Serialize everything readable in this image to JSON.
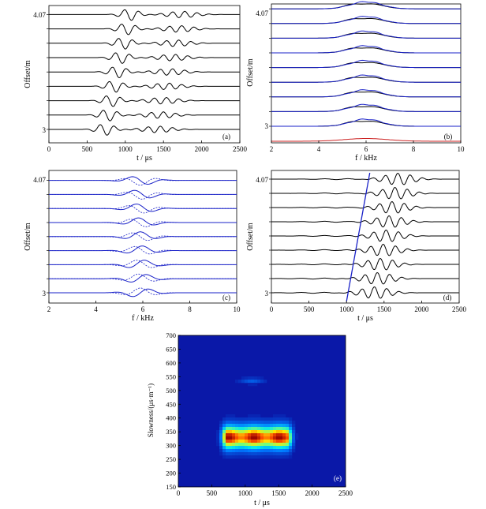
{
  "colors": {
    "trace": "#000000",
    "blue": "#1a22c8",
    "red": "#cc2222"
  },
  "chart_data": [
    {
      "panel": "(a)",
      "type": "line",
      "title": "",
      "xlabel": "t / μs",
      "ylabel": "Offset/m",
      "xlim": [
        0,
        2500
      ],
      "xticks": [
        "0",
        "500",
        "1000",
        "1500",
        "2000",
        "2500"
      ],
      "ytick_labels": [
        "4.07",
        "3"
      ],
      "offsets_m": [
        3,
        3.134,
        3.268,
        3.401,
        3.535,
        3.669,
        3.803,
        3.936,
        4.07
      ],
      "grid": false
    },
    {
      "panel": "(b)",
      "type": "line",
      "title": "",
      "xlabel": "f / kHz",
      "ylabel": "Offset/m",
      "xlim": [
        2,
        10
      ],
      "xticks": [
        "2",
        "4",
        "6",
        "8",
        "10"
      ],
      "ytick_labels": [
        "4.07",
        "3"
      ],
      "series": [
        {
          "color": "black"
        },
        {
          "color": "blue"
        },
        {
          "color": "red"
        }
      ],
      "grid": false
    },
    {
      "panel": "(c)",
      "type": "line",
      "title": "",
      "xlabel": "f / kHz",
      "ylabel": "Offset/m",
      "xlim": [
        2,
        10
      ],
      "xticks": [
        "2",
        "4",
        "6",
        "8",
        "10"
      ],
      "ytick_labels": [
        "4.07",
        "3"
      ],
      "series": [
        {
          "color": "blue",
          "style": "solid"
        },
        {
          "color": "blue",
          "style": "dashed"
        }
      ],
      "grid": false
    },
    {
      "panel": "(d)",
      "type": "line",
      "title": "",
      "xlabel": "t / μs",
      "ylabel": "Offset/m",
      "xlim": [
        0,
        2500
      ],
      "xticks": [
        "0",
        "500",
        "1000",
        "1500",
        "2000",
        "2500"
      ],
      "ytick_labels": [
        "4.07",
        "3"
      ],
      "moveout_line": {
        "x_at_3m": 1000,
        "x_at_4.07m": 1310
      },
      "grid": false
    },
    {
      "panel": "(e)",
      "type": "heatmap",
      "title": "",
      "xlabel": "t / μs",
      "ylabel": "Slowness/(μs·m⁻¹)",
      "xlim": [
        0,
        2500
      ],
      "ylim": [
        150,
        700
      ],
      "xticks": [
        "0",
        "500",
        "1000",
        "1500",
        "2000",
        "2500"
      ],
      "yticks": [
        "150",
        "200",
        "250",
        "300",
        "350",
        "400",
        "450",
        "500",
        "550",
        "600",
        "650",
        "700"
      ],
      "peak": {
        "t_range_us": [
          600,
          1750
        ],
        "slowness": 330
      },
      "weak_feature": {
        "t_range_us": [
          900,
          1300
        ],
        "slowness": 535
      },
      "grid": false
    }
  ],
  "labels": {
    "a": "(a)",
    "b": "(b)",
    "c": "(c)",
    "d": "(d)",
    "e": "(e)"
  }
}
